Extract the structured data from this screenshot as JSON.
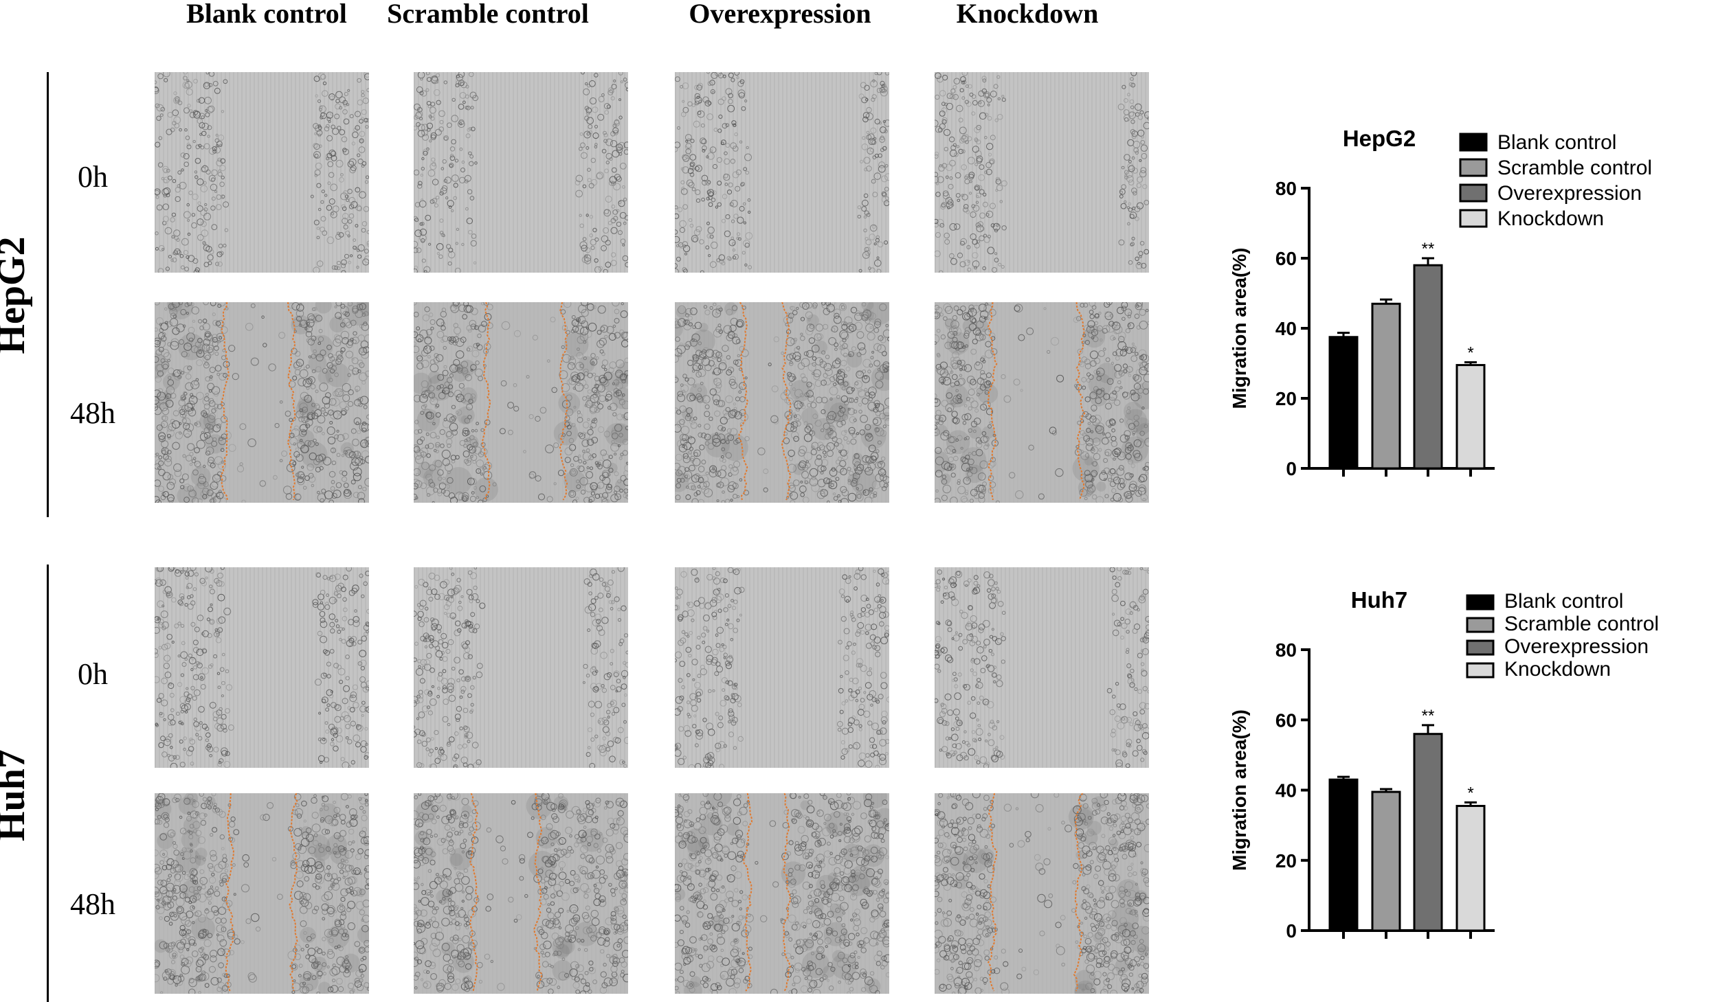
{
  "column_headers": [
    "Blank control",
    "Scramble control",
    "Overexpression",
    "Knockdown"
  ],
  "cell_lines": [
    {
      "name": "HepG2",
      "timepoints": [
        "0h",
        "48h"
      ]
    },
    {
      "name": "Huh7",
      "timepoints": [
        "0h",
        "48h"
      ]
    }
  ],
  "colors": {
    "blank_control": "#000000",
    "scramble_control": "#9a9a9a",
    "overexpression": "#707070",
    "knockdown": "#d9d9d9",
    "wound_edge": "#e07a30"
  },
  "chart_data": [
    {
      "type": "bar",
      "title": "HepG2",
      "ylabel": "Migration area(%)",
      "ylim": [
        0,
        80
      ],
      "yticks": [
        0,
        20,
        40,
        60,
        80
      ],
      "categories": [
        "Blank control",
        "Scramble control",
        "Overexpression",
        "Knockdown"
      ],
      "values": [
        37.5,
        47,
        58,
        29.5
      ],
      "errors": [
        1.2,
        1.2,
        2,
        0.8
      ],
      "significance": [
        "",
        "",
        "**",
        "*"
      ],
      "legend": [
        "Blank control",
        "Scramble control",
        "Overexpression",
        "Knockdown"
      ],
      "legend_position": "top-right",
      "grid": false
    },
    {
      "type": "bar",
      "title": "Huh7",
      "ylabel": "Migration area(%)",
      "ylim": [
        0,
        80
      ],
      "yticks": [
        0,
        20,
        40,
        60,
        80
      ],
      "categories": [
        "Blank control",
        "Scramble control",
        "Overexpression",
        "Knockdown"
      ],
      "values": [
        43,
        39.5,
        56,
        35.5
      ],
      "errors": [
        0.8,
        0.8,
        2.5,
        1
      ],
      "significance": [
        "",
        "",
        "**",
        "*"
      ],
      "legend": [
        "Blank control",
        "Scramble control",
        "Overexpression",
        "Knockdown"
      ],
      "legend_position": "top-right",
      "grid": false
    }
  ]
}
